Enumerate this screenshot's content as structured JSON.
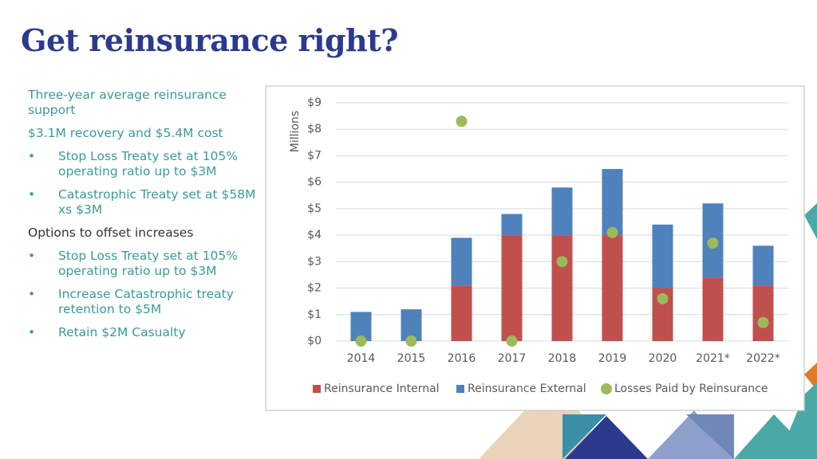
{
  "header": {
    "title": "Get reinsurance right?"
  },
  "body": {
    "sections": [
      {
        "heading": "Three-year average reinsurance support",
        "subheading": "$3.1M recovery and $5.4M cost",
        "items": [
          "Stop Loss Treaty set at 105% operating ratio up to $3M",
          "Catastrophic Treaty set at $58M xs $3M"
        ]
      },
      {
        "heading": "Options to offset increases",
        "items": [
          "Stop Loss Treaty set at 105% operating ratio up to $3M",
          "Increase Catastrophic treaty retention to $5M",
          "Retain $2M Casualty"
        ]
      }
    ]
  },
  "chart_data": {
    "type": "bar",
    "stacked": true,
    "ylabel": "Millions",
    "categories": [
      "2014",
      "2015",
      "2016",
      "2017",
      "2018",
      "2019",
      "2020",
      "2021*",
      "2022*"
    ],
    "series": [
      {
        "name": "Reinsurance Internal",
        "color": "#c0504d",
        "values": [
          0,
          0,
          2.1,
          4.0,
          4.0,
          4.0,
          2.0,
          2.4,
          2.1
        ]
      },
      {
        "name": "Reinsurance External",
        "color": "#4f81bd",
        "values": [
          1.1,
          1.2,
          1.8,
          0.8,
          1.8,
          2.5,
          2.4,
          2.8,
          1.5
        ]
      },
      {
        "name": "Losses Paid by Reinsurance",
        "color": "#9bbb59",
        "type": "scatter",
        "values": [
          0,
          0,
          8.3,
          0,
          3.0,
          4.1,
          1.6,
          3.7,
          0.7
        ]
      }
    ],
    "ylim": [
      0,
      9
    ],
    "yticks": [
      {
        "value": 0,
        "label": "$0"
      },
      {
        "value": 1,
        "label": "$1"
      },
      {
        "value": 2,
        "label": "$2"
      },
      {
        "value": 3,
        "label": "$3"
      },
      {
        "value": 4,
        "label": "$4"
      },
      {
        "value": 5,
        "label": "$5"
      },
      {
        "value": 6,
        "label": "$6"
      },
      {
        "value": 7,
        "label": "$7"
      },
      {
        "value": 8,
        "label": "$8"
      },
      {
        "value": 9,
        "label": "$9"
      }
    ],
    "grid": true,
    "legend": "bottom"
  }
}
